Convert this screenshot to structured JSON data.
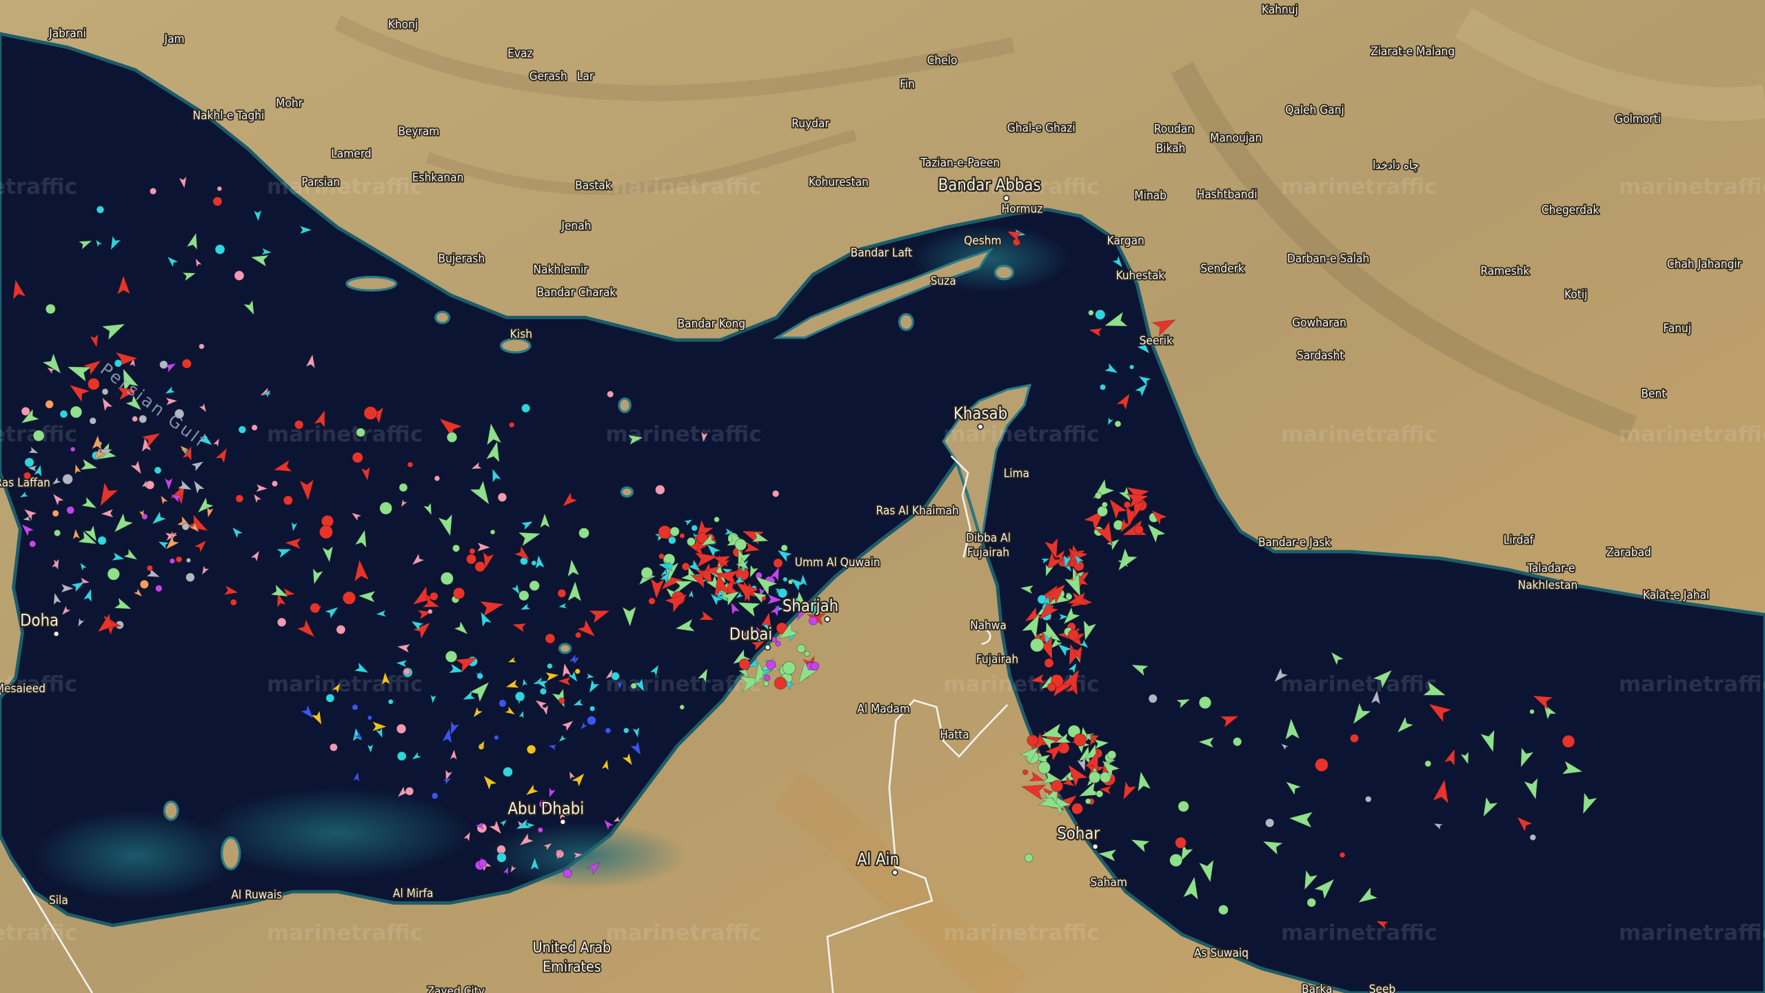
{
  "map": {
    "watermark": "marinetraffic",
    "sea_label": "Persian Gulf",
    "colors": {
      "sea": "#0b1433",
      "land": "#b9a274",
      "tanker": "#e8332b",
      "cargo": "#8ee08a",
      "tug_special": "#2fd5df",
      "fishing": "#f19ab2",
      "pleasure": "#c544ee",
      "high_speed": "#f3a05e",
      "passenger": "#3a55f0",
      "other": "#f2c21e",
      "unknown": "#b4b6c4"
    },
    "places": [
      "Jabrani",
      "Jam",
      "Khonj",
      "Evaz",
      "Gerash",
      "Lar",
      "Chelo",
      "Fin",
      "Kahnuj",
      "Ziarat-e Malang",
      "Qaleh Ganj",
      "Golmorti",
      "Mohr",
      "Nakhl-e Taghi",
      "Ruydar",
      "Ghal-e Ghazi",
      "Roudan",
      "Manoujan",
      "Bikah",
      "Beyram",
      "Lamerd",
      "Tazian-e-Paeen",
      "Eshkanan",
      "Parsian",
      "Bastak",
      "Kohurestan",
      "Bandar Abbas",
      "Minab",
      "Hashtbandi",
      "چاه دادخدا",
      "Chegerdak",
      "Hormuz",
      "Qeshm",
      "Kargan",
      "Jenah",
      "Bujerash",
      "Nakhlemir",
      "Bandar Laft",
      "Darban-e Salah",
      "Chah Jahangir",
      "Rameshk",
      "Kuhestak",
      "Senderk",
      "Suza",
      "Bandar Charak",
      "Kotij",
      "Bandar Kong",
      "Kish",
      "Gowharan",
      "Fanuj",
      "Seerik",
      "Sardasht",
      "Bent",
      "Khasab",
      "Lima",
      "Ras Al Khaimah",
      "Dibba Al",
      "Fujairah",
      "Bandar-e Jask",
      "Lirdaf",
      "Zarabad",
      "Taladar-e",
      "Nakhlestan",
      "Kalat-e Jahal",
      "Umm Al Quwain",
      "Sharjah",
      "Doha",
      "Dubai",
      "Nahwa",
      "Fujairah",
      "Mesaieed",
      "Al Madam",
      "Hatta",
      "Abu Dhabi",
      "Sohar",
      "Al Ain",
      "Saham",
      "Sila",
      "Al Ruwais",
      "Al Mirfa",
      "As Suwaiq",
      "United Arab",
      "Emirates",
      "Barka",
      "Seeb",
      "Zayed City",
      "Ras Laffan"
    ]
  }
}
